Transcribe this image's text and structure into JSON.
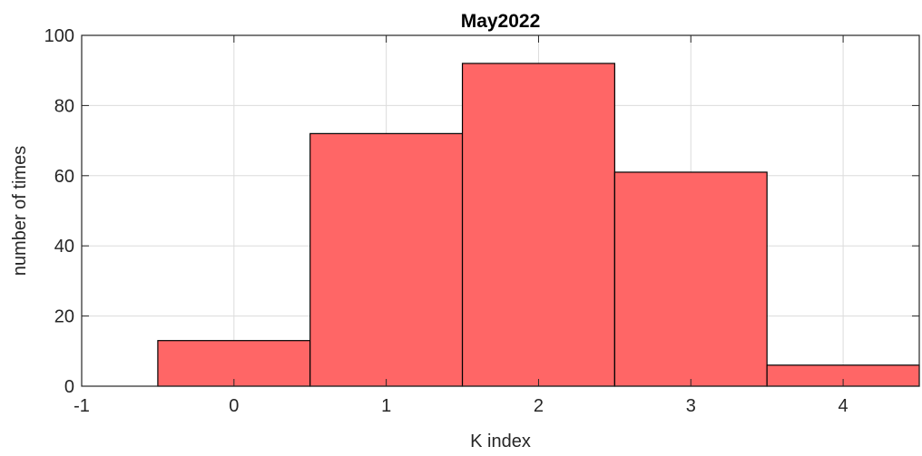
{
  "chart_data": {
    "type": "bar",
    "title": "May2022",
    "xlabel": "K index",
    "ylabel": "number of times",
    "categories": [
      "0",
      "1",
      "2",
      "3",
      "4"
    ],
    "x": [
      0,
      1,
      2,
      3,
      4
    ],
    "values": [
      13,
      72,
      92,
      61,
      6
    ],
    "bar_width": 1,
    "xlim": [
      -1,
      4.5
    ],
    "ylim": [
      0,
      100
    ],
    "xticks": [
      -1,
      0,
      1,
      2,
      3,
      4
    ],
    "yticks": [
      0,
      20,
      40,
      60,
      80,
      100
    ],
    "grid": true,
    "colors": {
      "bar_fill": "#ff6666",
      "bar_edge": "#000000"
    }
  }
}
